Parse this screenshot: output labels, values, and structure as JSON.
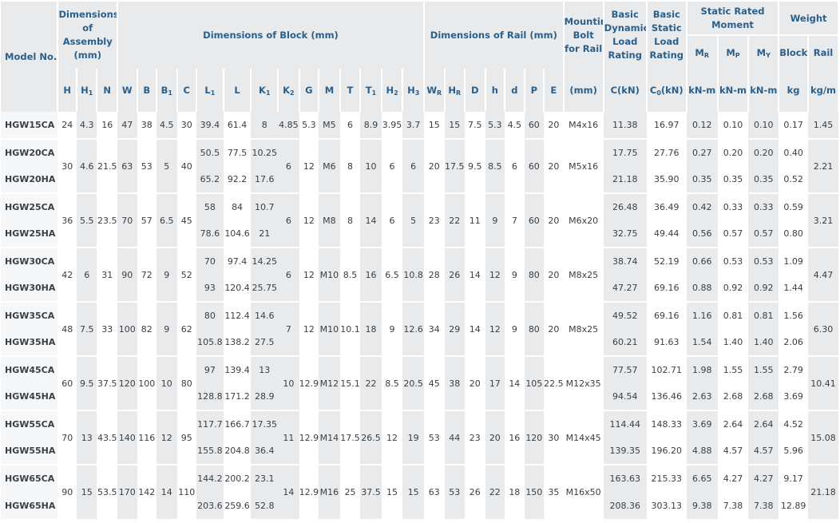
{
  "headers": {
    "model": "Model No.",
    "assembly": "Dimensions of Assembly (mm)",
    "block": "Dimensions of Block (mm)",
    "rail": "Dimensions of Rail (mm)",
    "bolt": "Mounting Bolt for Rail",
    "dynamic": "Basic Dynamic Load Rating",
    "static": "Basic Static Load Rating",
    "moment": "Static Rated Moment",
    "weight": "Weight",
    "mr": "MR",
    "mp": "MP",
    "my": "MY",
    "block_w": "Block",
    "rail_w": "Rail",
    "units": [
      "H",
      "H1",
      "N",
      "W",
      "B",
      "B1",
      "C",
      "L1",
      "L",
      "K1",
      "K2",
      "G",
      "M",
      "T",
      "T1",
      "H2",
      "H3",
      "WR",
      "HR",
      "D",
      "h",
      "d",
      "P",
      "E",
      "(mm)",
      "C(kN)",
      "C0(kN)",
      "kN-m",
      "kN-m",
      "kN-m",
      "kg",
      "kg/m"
    ]
  },
  "groups": [
    {
      "rows": [
        {
          "model": "HGW15CA",
          "L1": "39.4",
          "L": "61.4",
          "K1": "8",
          "C": "11.38",
          "C0": "16.97",
          "MR": "0.12",
          "MP": "0.10",
          "MY": "0.10",
          "block": "0.17"
        }
      ],
      "shared": {
        "H": "24",
        "H1": "4.3",
        "N": "16",
        "W": "47",
        "B": "38",
        "B1": "4.5",
        "Cb": "30",
        "K2": "4.85",
        "G": "5.3",
        "M": "M5",
        "T": "6",
        "T1": "8.9",
        "H2": "3.95",
        "H3": "3.7",
        "WR": "15",
        "HR": "15",
        "D": "7.5",
        "h": "5.3",
        "d": "4.5",
        "P": "60",
        "E": "20",
        "bolt": "M4x16",
        "rail": "1.45"
      }
    },
    {
      "rows": [
        {
          "model": "HGW20CA",
          "L1": "50.5",
          "L": "77.5",
          "K1": "10.25",
          "C": "17.75",
          "C0": "27.76",
          "MR": "0.27",
          "MP": "0.20",
          "MY": "0.20",
          "block": "0.40"
        },
        {
          "model": "HGW20HA",
          "L1": "65.2",
          "L": "92.2",
          "K1": "17.6",
          "C": "21.18",
          "C0": "35.90",
          "MR": "0.35",
          "MP": "0.35",
          "MY": "0.35",
          "block": "0.52"
        }
      ],
      "shared": {
        "H": "30",
        "H1": "4.6",
        "N": "21.5",
        "W": "63",
        "B": "53",
        "B1": "5",
        "Cb": "40",
        "K2": "6",
        "G": "12",
        "M": "M6",
        "T": "8",
        "T1": "10",
        "H2": "6",
        "H3": "6",
        "WR": "20",
        "HR": "17.5",
        "D": "9.5",
        "h": "8.5",
        "d": "6",
        "P": "60",
        "E": "20",
        "bolt": "M5x16",
        "rail": "2.21"
      }
    },
    {
      "rows": [
        {
          "model": "HGW25CA",
          "L1": "58",
          "L": "84",
          "K1": "10.7",
          "C": "26.48",
          "C0": "36.49",
          "MR": "0.42",
          "MP": "0.33",
          "MY": "0.33",
          "block": "0.59"
        },
        {
          "model": "HGW25HA",
          "L1": "78.6",
          "L": "104.6",
          "K1": "21",
          "C": "32.75",
          "C0": "49.44",
          "MR": "0.56",
          "MP": "0.57",
          "MY": "0.57",
          "block": "0.80"
        }
      ],
      "shared": {
        "H": "36",
        "H1": "5.5",
        "N": "23.5",
        "W": "70",
        "B": "57",
        "B1": "6.5",
        "Cb": "45",
        "K2": "6",
        "G": "12",
        "M": "M8",
        "T": "8",
        "T1": "14",
        "H2": "6",
        "H3": "5",
        "WR": "23",
        "HR": "22",
        "D": "11",
        "h": "9",
        "d": "7",
        "P": "60",
        "E": "20",
        "bolt": "M6x20",
        "rail": "3.21"
      }
    },
    {
      "rows": [
        {
          "model": "HGW30CA",
          "L1": "70",
          "L": "97.4",
          "K1": "14.25",
          "C": "38.74",
          "C0": "52.19",
          "MR": "0.66",
          "MP": "0.53",
          "MY": "0.53",
          "block": "1.09"
        },
        {
          "model": "HGW30HA",
          "L1": "93",
          "L": "120.4",
          "K1": "25.75",
          "C": "47.27",
          "C0": "69.16",
          "MR": "0.88",
          "MP": "0.92",
          "MY": "0.92",
          "block": "1.44"
        }
      ],
      "shared": {
        "H": "42",
        "H1": "6",
        "N": "31",
        "W": "90",
        "B": "72",
        "B1": "9",
        "Cb": "52",
        "K2": "6",
        "G": "12",
        "M": "M10",
        "T": "8.5",
        "T1": "16",
        "H2": "6.5",
        "H3": "10.8",
        "WR": "28",
        "HR": "26",
        "D": "14",
        "h": "12",
        "d": "9",
        "P": "80",
        "E": "20",
        "bolt": "M8x25",
        "rail": "4.47"
      }
    },
    {
      "rows": [
        {
          "model": "HGW35CA",
          "L1": "80",
          "L": "112.4",
          "K1": "14.6",
          "C": "49.52",
          "C0": "69.16",
          "MR": "1.16",
          "MP": "0.81",
          "MY": "0.81",
          "block": "1.56"
        },
        {
          "model": "HGW35HA",
          "L1": "105.8",
          "L": "138.2",
          "K1": "27.5",
          "C": "60.21",
          "C0": "91.63",
          "MR": "1.54",
          "MP": "1.40",
          "MY": "1.40",
          "block": "2.06"
        }
      ],
      "shared": {
        "H": "48",
        "H1": "7.5",
        "N": "33",
        "W": "100",
        "B": "82",
        "B1": "9",
        "Cb": "62",
        "K2": "7",
        "G": "12",
        "M": "M10",
        "T": "10.1",
        "T1": "18",
        "H2": "9",
        "H3": "12.6",
        "WR": "34",
        "HR": "29",
        "D": "14",
        "h": "12",
        "d": "9",
        "P": "80",
        "E": "20",
        "bolt": "M8x25",
        "rail": "6.30"
      }
    },
    {
      "rows": [
        {
          "model": "HGW45CA",
          "L1": "97",
          "L": "139.4",
          "K1": "13",
          "C": "77.57",
          "C0": "102.71",
          "MR": "1.98",
          "MP": "1.55",
          "MY": "1.55",
          "block": "2.79"
        },
        {
          "model": "HGW45HA",
          "L1": "128.8",
          "L": "171.2",
          "K1": "28.9",
          "C": "94.54",
          "C0": "136.46",
          "MR": "2.63",
          "MP": "2.68",
          "MY": "2.68",
          "block": "3.69"
        }
      ],
      "shared": {
        "H": "60",
        "H1": "9.5",
        "N": "37.5",
        "W": "120",
        "B": "100",
        "B1": "10",
        "Cb": "80",
        "K2": "10",
        "G": "12.9",
        "M": "M12",
        "T": "15.1",
        "T1": "22",
        "H2": "8.5",
        "H3": "20.5",
        "WR": "45",
        "HR": "38",
        "D": "20",
        "h": "17",
        "d": "14",
        "P": "105",
        "E": "22.5",
        "bolt": "M12x35",
        "rail": "10.41"
      }
    },
    {
      "rows": [
        {
          "model": "HGW55CA",
          "L1": "117.7",
          "L": "166.7",
          "K1": "17.35",
          "C": "114.44",
          "C0": "148.33",
          "MR": "3.69",
          "MP": "2.64",
          "MY": "2.64",
          "block": "4.52"
        },
        {
          "model": "HGW55HA",
          "L1": "155.8",
          "L": "204.8",
          "K1": "36.4",
          "C": "139.35",
          "C0": "196.20",
          "MR": "4.88",
          "MP": "4.57",
          "MY": "4.57",
          "block": "5.96"
        }
      ],
      "shared": {
        "H": "70",
        "H1": "13",
        "N": "43.5",
        "W": "140",
        "B": "116",
        "B1": "12",
        "Cb": "95",
        "K2": "11",
        "G": "12.9",
        "M": "M14",
        "T": "17.5",
        "T1": "26.5",
        "H2": "12",
        "H3": "19",
        "WR": "53",
        "HR": "44",
        "D": "23",
        "h": "20",
        "d": "16",
        "P": "120",
        "E": "30",
        "bolt": "M14x45",
        "rail": "15.08"
      }
    },
    {
      "rows": [
        {
          "model": "HGW65CA",
          "L1": "144.2",
          "L": "200.2",
          "K1": "23.1",
          "C": "163.63",
          "C0": "215.33",
          "MR": "6.65",
          "MP": "4.27",
          "MY": "4.27",
          "block": "9.17"
        },
        {
          "model": "HGW65HA",
          "L1": "203.6",
          "L": "259.6",
          "K1": "52.8",
          "C": "208.36",
          "C0": "303.13",
          "MR": "9.38",
          "MP": "7.38",
          "MY": "7.38",
          "block": "12.89"
        }
      ],
      "shared": {
        "H": "90",
        "H1": "15",
        "N": "53.5",
        "W": "170",
        "B": "142",
        "B1": "14",
        "Cb": "110",
        "K2": "14",
        "G": "12.9",
        "M": "M16",
        "T": "25",
        "T1": "37.5",
        "H2": "15",
        "H3": "15",
        "WR": "63",
        "HR": "53",
        "D": "26",
        "h": "22",
        "d": "18",
        "P": "150",
        "E": "35",
        "bolt": "M16x50",
        "rail": "21.18"
      }
    }
  ]
}
